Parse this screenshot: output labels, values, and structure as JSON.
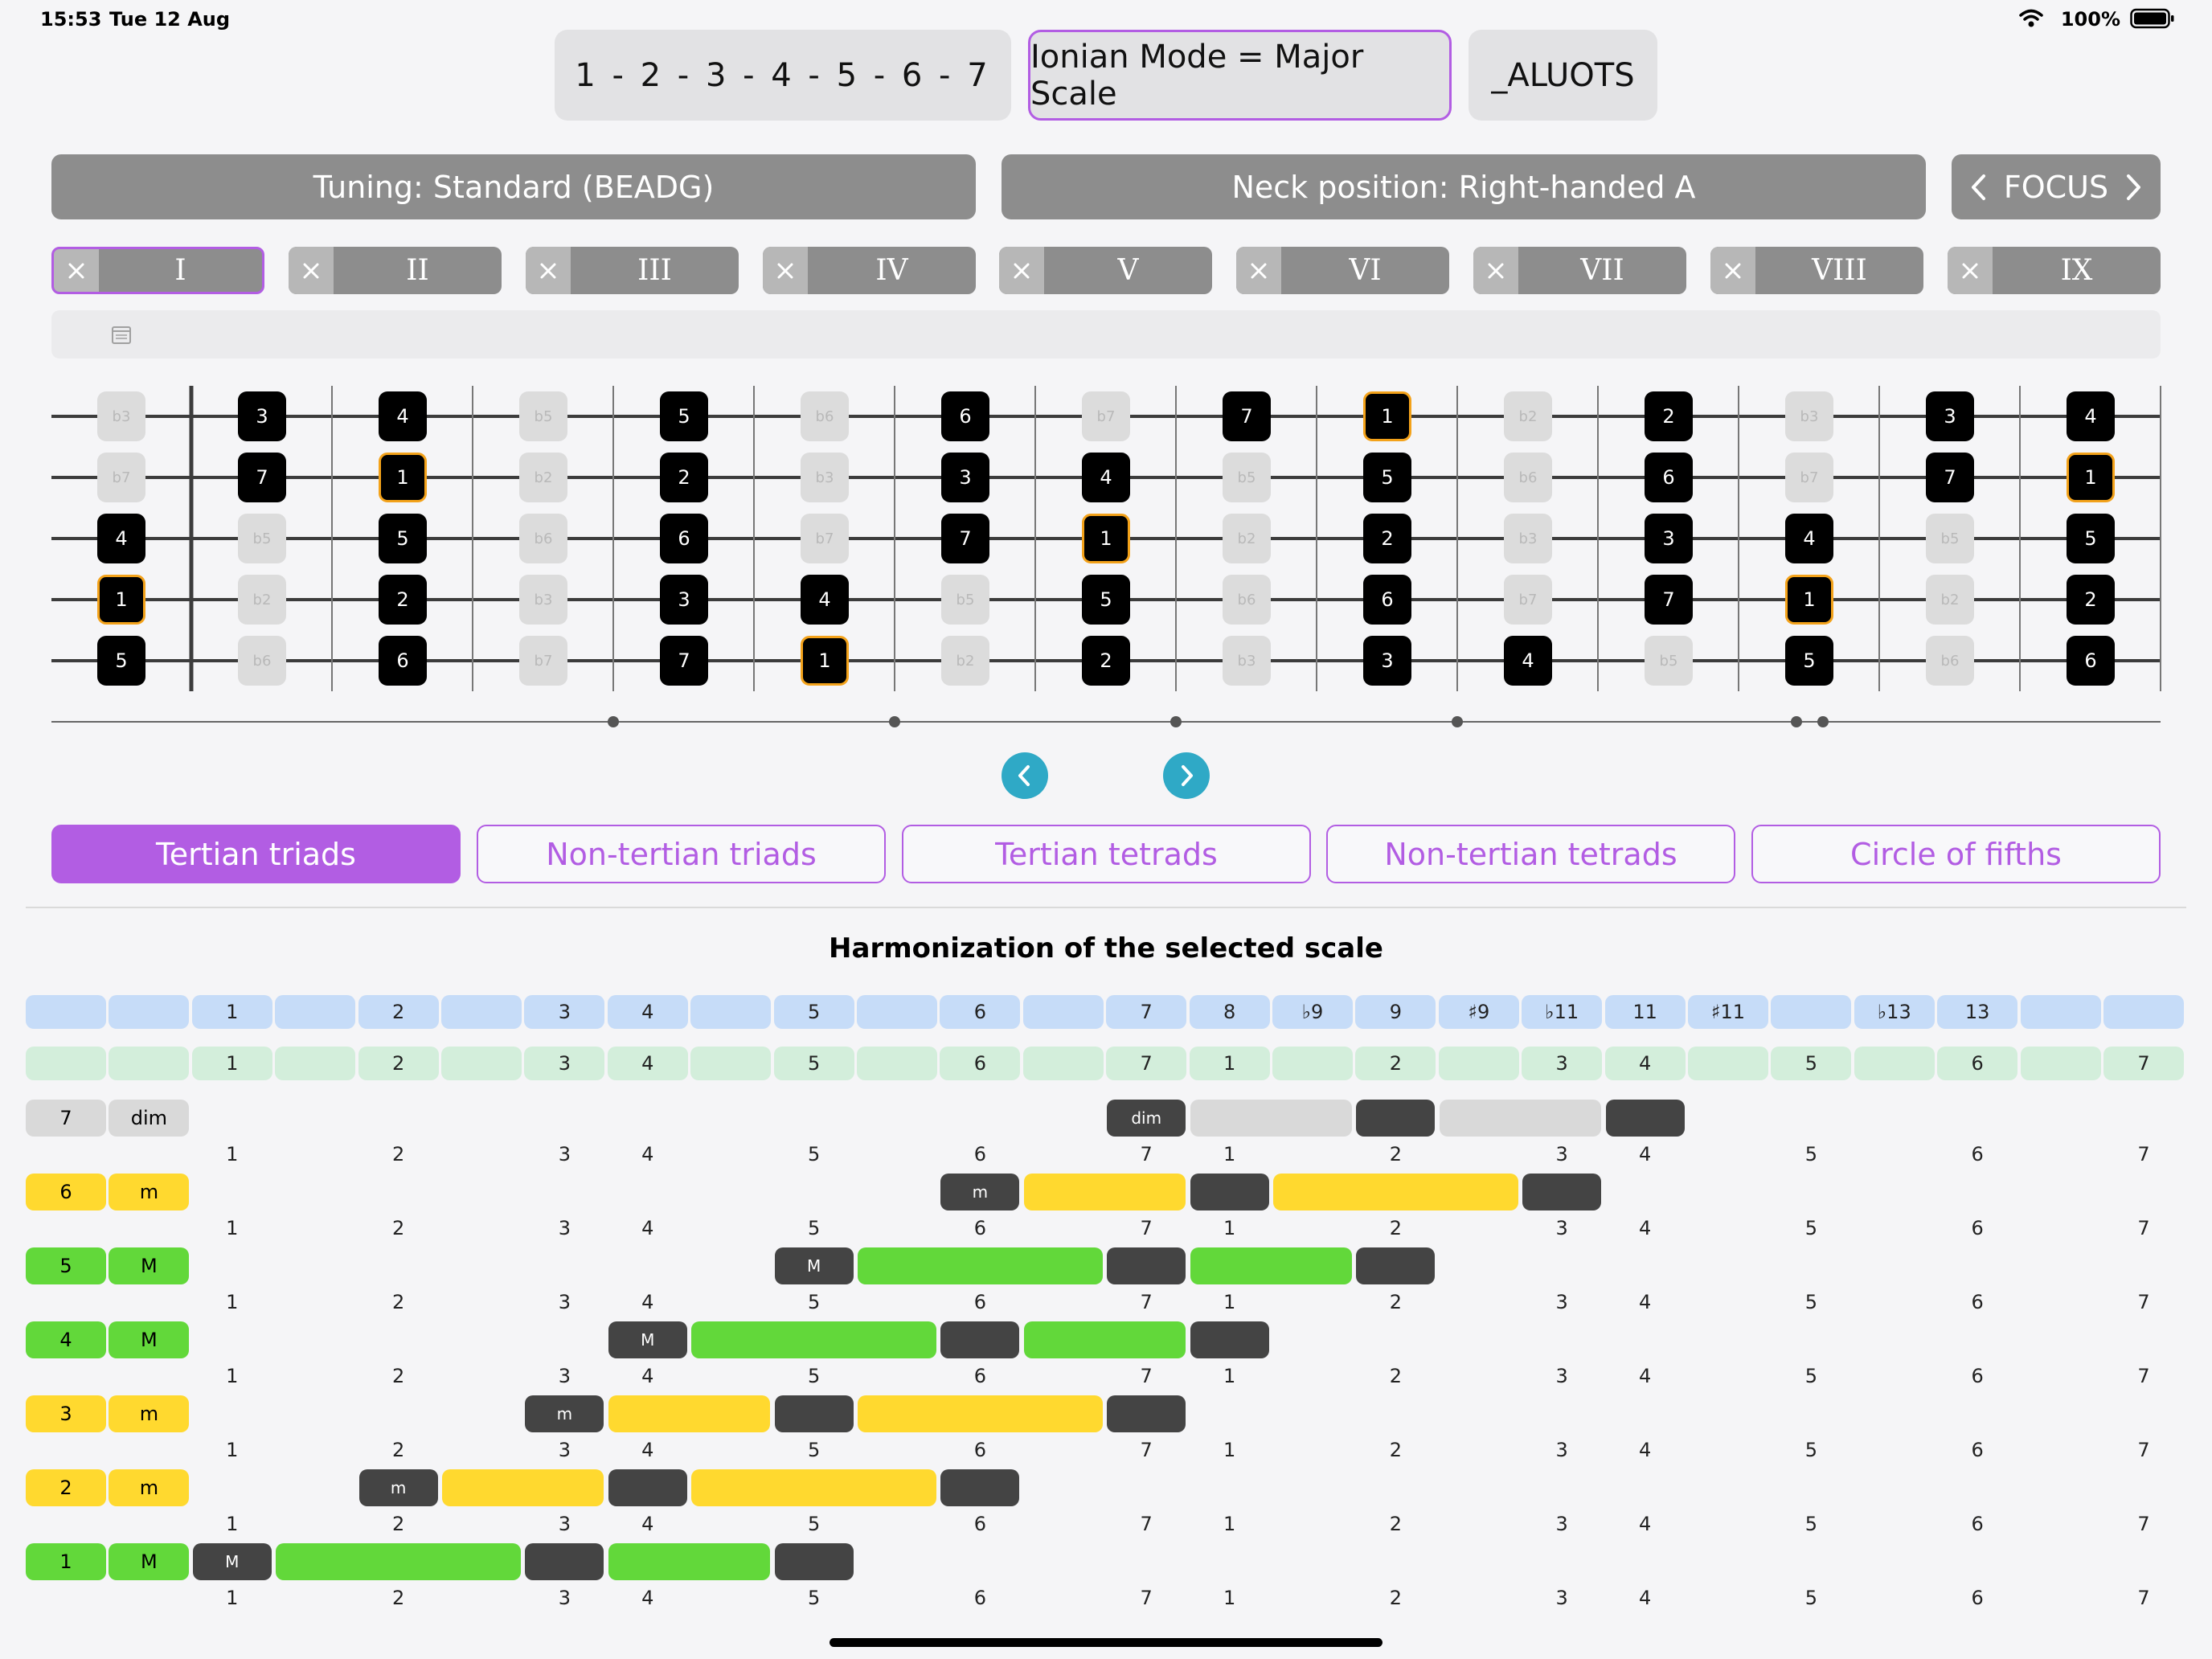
{
  "status": {
    "time": "15:53",
    "date": "Tue 12 Aug",
    "battery": "100%"
  },
  "top": {
    "intervals": "1 - 2 - 3 - 4 - 5 - 6 - 7",
    "mode": "Ionian Mode = Major Scale",
    "aluots": "_ALUOTS"
  },
  "bars": {
    "tuning": "Tuning: Standard (BEADG)",
    "neck": "Neck position: Right-handed A",
    "focus": "FOCUS"
  },
  "positions": [
    "I",
    "II",
    "III",
    "IV",
    "V",
    "VI",
    "VII",
    "VIII",
    "IX"
  ],
  "selected_position": 0,
  "fretboard": {
    "strings": [
      [
        "b3",
        "3",
        "4",
        "b5",
        "5",
        "b6",
        "6",
        "b7",
        "7",
        "1",
        "b2",
        "2",
        "b3",
        "3",
        "4"
      ],
      [
        "b7",
        "7",
        "1",
        "b2",
        "2",
        "b3",
        "3",
        "4",
        "b5",
        "5",
        "b6",
        "6",
        "b7",
        "7",
        "1"
      ],
      [
        "4",
        "b5",
        "5",
        "b6",
        "6",
        "b7",
        "7",
        "1",
        "b2",
        "2",
        "b3",
        "3",
        "4",
        "b5",
        "5"
      ],
      [
        "1",
        "b2",
        "2",
        "b3",
        "3",
        "4",
        "b5",
        "5",
        "b6",
        "6",
        "b7",
        "7",
        "1",
        "b2",
        "2"
      ],
      [
        "5",
        "b6",
        "6",
        "b7",
        "7",
        "1",
        "b2",
        "2",
        "b3",
        "3",
        "4",
        "b5",
        "5",
        "b6",
        "6"
      ]
    ],
    "scale_degrees": [
      "1",
      "2",
      "3",
      "4",
      "5",
      "6",
      "7"
    ]
  },
  "tabs": [
    "Tertian triads",
    "Non-tertian triads",
    "Tertian tetrads",
    "Non-tertian tetrads",
    "Circle of fifths"
  ],
  "active_tab": 0,
  "harmonization": {
    "title": "Harmonization of the selected scale",
    "header_intervals": [
      "",
      "",
      "1",
      "",
      "2",
      "",
      "3",
      "4",
      "",
      "5",
      "",
      "6",
      "",
      "7",
      "8",
      "♭9",
      "9",
      "♯9",
      "♭11",
      "11",
      "♯11",
      "",
      "♭13",
      "13",
      "",
      ""
    ],
    "header_degrees": [
      "",
      "",
      "1",
      "",
      "2",
      "",
      "3",
      "4",
      "",
      "5",
      "",
      "6",
      "",
      "7",
      "1",
      "",
      "2",
      "",
      "3",
      "4",
      "",
      "5",
      "",
      "6",
      "",
      "7"
    ],
    "degree_row": [
      "1",
      "2",
      "3",
      "4",
      "5",
      "6",
      "7",
      "1",
      "2",
      "3",
      "4",
      "5",
      "6",
      "7"
    ],
    "chords": [
      {
        "degree": "7",
        "quality": "dim",
        "color": "#d9d9d9"
      },
      {
        "degree": "6",
        "quality": "m",
        "color": "#ffd92f"
      },
      {
        "degree": "5",
        "quality": "M",
        "color": "#62d83a"
      },
      {
        "degree": "4",
        "quality": "M",
        "color": "#62d83a"
      },
      {
        "degree": "3",
        "quality": "m",
        "color": "#ffd92f"
      },
      {
        "degree": "2",
        "quality": "m",
        "color": "#ffd92f"
      },
      {
        "degree": "1",
        "quality": "M",
        "color": "#62d83a"
      }
    ]
  },
  "colors": {
    "accent": "#b25de3",
    "nav": "#2fa9c6",
    "root_border": "#f3a21a",
    "dark": "#444444"
  }
}
